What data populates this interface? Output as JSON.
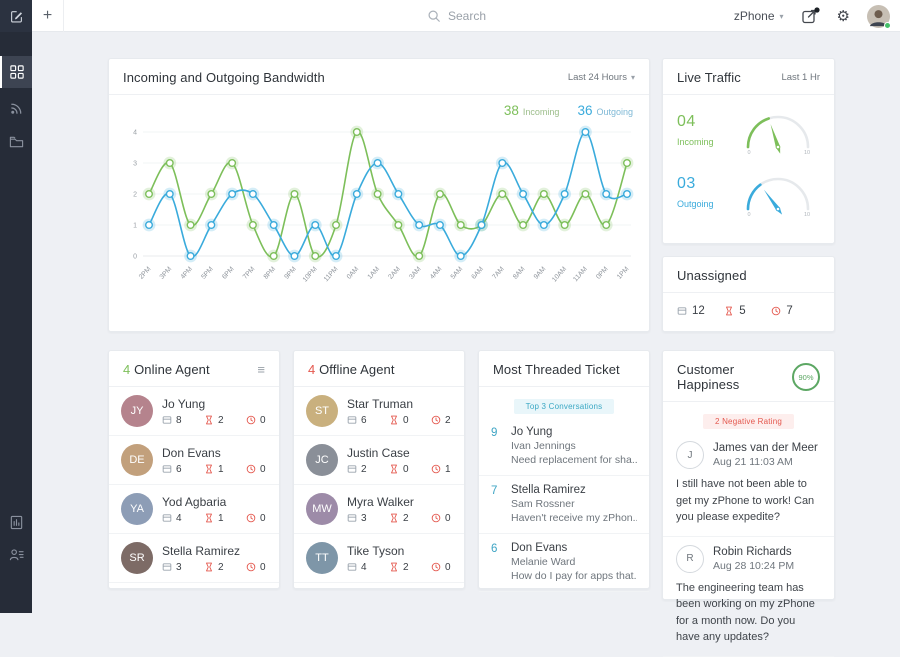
{
  "colors": {
    "green": "#7dbf5a",
    "blue": "#3aabdc",
    "red": "#e4584e",
    "teal": "#3da4c4",
    "gray_icon": "#9aa3ad",
    "dark": "#3a3f45",
    "green_label": "#9cbd8a",
    "blue_label": "#7fb9d6"
  },
  "icons": {
    "gear": "⚙",
    "chevron_down": "▾",
    "hamburger": "≡",
    "plus": "+"
  },
  "topbar": {
    "search_placeholder": "Search",
    "app_selector": "zPhone"
  },
  "sidebar": {
    "items": [
      "dashboard",
      "live-traffic",
      "tickets"
    ],
    "bottom_items": [
      "reports",
      "contacts"
    ]
  },
  "bandwidth": {
    "title": "Incoming and Outgoing Bandwidth",
    "range": "Last 24 Hours",
    "legend": {
      "incoming_value": "38",
      "incoming_label": "Incoming",
      "outgoing_value": "36",
      "outgoing_label": "Outgoing"
    }
  },
  "chart_data": {
    "type": "line",
    "title": "Incoming and Outgoing Bandwidth",
    "x": [
      "2PM",
      "3PM",
      "4PM",
      "5PM",
      "6PM",
      "7PM",
      "8PM",
      "9PM",
      "10PM",
      "11PM",
      "0AM",
      "1AM",
      "2AM",
      "3AM",
      "4AM",
      "5AM",
      "6AM",
      "7AM",
      "8AM",
      "9AM",
      "10AM",
      "11AM",
      "0PM",
      "1PM"
    ],
    "series": [
      {
        "name": "Incoming",
        "color": "#7dbf5a",
        "values": [
          2,
          3,
          1,
          2,
          3,
          1,
          0,
          2,
          0,
          1,
          4,
          2,
          1,
          0,
          2,
          1,
          1,
          2,
          1,
          2,
          1,
          2,
          1,
          3
        ]
      },
      {
        "name": "Outgoing",
        "color": "#3aabdc",
        "values": [
          1,
          2,
          0,
          1,
          2,
          2,
          1,
          0,
          1,
          0,
          2,
          3,
          2,
          1,
          1,
          0,
          1,
          3,
          2,
          1,
          2,
          4,
          2,
          2
        ]
      }
    ],
    "ylim": [
      0,
      4
    ],
    "yticks": [
      0,
      1,
      2,
      3,
      4
    ],
    "grid": true,
    "legend_position": "top-right",
    "marker": "circle"
  },
  "live_traffic": {
    "title": "Live Traffic",
    "range": "Last 1 Hr",
    "scale_min": "0",
    "scale_max": "10",
    "gauges": [
      {
        "display": "04",
        "label": "Incoming",
        "value": 4,
        "max": 10,
        "color": "#7dbf5a"
      },
      {
        "display": "03",
        "label": "Outgoing",
        "value": 3,
        "max": 10,
        "color": "#3aabdc"
      }
    ]
  },
  "unassigned": {
    "title": "Unassigned",
    "stats": [
      {
        "icon": "tickets-icon",
        "value": "12",
        "color": "#9aa3ad"
      },
      {
        "icon": "overdue-icon",
        "value": "5",
        "color": "#e4584e"
      },
      {
        "icon": "due-time-icon",
        "value": "7",
        "color": "#e4584e"
      }
    ]
  },
  "online_agents": {
    "count": "4",
    "label": "Online Agent",
    "agents": [
      {
        "name": "Jo Yung",
        "initials": "JY",
        "avatar_color": "#b5838d",
        "tickets": "8",
        "overdue": "2",
        "due": "0"
      },
      {
        "name": "Don Evans",
        "initials": "DE",
        "avatar_color": "#c2a07c",
        "tickets": "6",
        "overdue": "1",
        "due": "0"
      },
      {
        "name": "Yod Agbaria",
        "initials": "YA",
        "avatar_color": "#8d9db6",
        "tickets": "4",
        "overdue": "1",
        "due": "0"
      },
      {
        "name": "Stella Ramirez",
        "initials": "SR",
        "avatar_color": "#7d6b66",
        "tickets": "3",
        "overdue": "2",
        "due": "0"
      }
    ]
  },
  "offline_agents": {
    "count": "4",
    "label": "Offline Agent",
    "agents": [
      {
        "name": "Star Truman",
        "initials": "ST",
        "avatar_color": "#c9b07e",
        "tickets": "6",
        "overdue": "0",
        "due": "2"
      },
      {
        "name": "Justin Case",
        "initials": "JC",
        "avatar_color": "#8a8f98",
        "tickets": "2",
        "overdue": "0",
        "due": "1"
      },
      {
        "name": "Myra Walker",
        "initials": "MW",
        "avatar_color": "#9d8ba8",
        "tickets": "3",
        "overdue": "2",
        "due": "0"
      },
      {
        "name": "Tike Tyson",
        "initials": "TT",
        "avatar_color": "#7e96a8",
        "tickets": "4",
        "overdue": "2",
        "due": "0"
      }
    ]
  },
  "most_threaded": {
    "title": "Most Threaded Ticket",
    "badge": "Top 3 Conversations",
    "threads": [
      {
        "count": "9",
        "agent": "Jo Yung",
        "contact": "Ivan Jennings",
        "subject": "Need replacement for sha.."
      },
      {
        "count": "7",
        "agent": "Stella Ramirez",
        "contact": "Sam Rossner",
        "subject": "Haven't receive my zPhon.."
      },
      {
        "count": "6",
        "agent": "Don Evans",
        "contact": "Melanie Ward",
        "subject": "How do I pay for apps that.."
      }
    ]
  },
  "customer_happiness": {
    "title": "Customer Happiness",
    "score": "90%",
    "badge": "2 Negative Rating",
    "reviews": [
      {
        "initial": "J",
        "name": "James van der Meer",
        "date": "Aug 21 11:03 AM",
        "message": "I still have not been able to get my zPhone to work! Can you please expedite?"
      },
      {
        "initial": "R",
        "name": "Robin Richards",
        "date": "Aug 28 10:24 PM",
        "message": "The engineering team has been working on my zPhone for a month now. Do you have any updates?"
      }
    ]
  }
}
